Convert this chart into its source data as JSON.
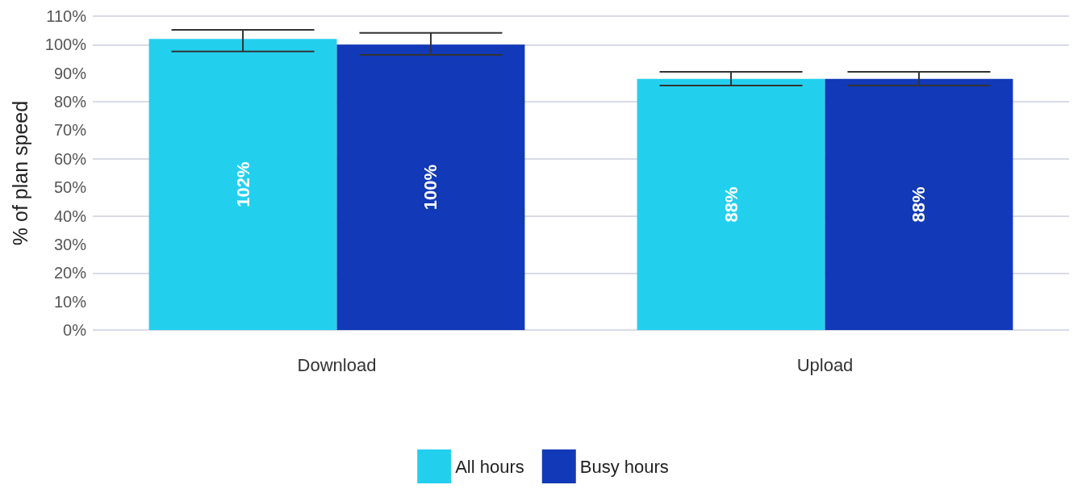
{
  "chart_data": {
    "type": "bar",
    "ylabel": "% of plan speed",
    "categories": [
      "Download",
      "Upload"
    ],
    "series": [
      {
        "name": "All hours",
        "color": "#22d0ee",
        "values": [
          102,
          88
        ],
        "value_labels": [
          "102%",
          "88%"
        ],
        "errors": [
          [
            97.6,
            105.2
          ],
          [
            85.7,
            90.5
          ]
        ]
      },
      {
        "name": "Busy hours",
        "color": "#1239b7",
        "values": [
          100,
          88
        ],
        "value_labels": [
          "100%",
          "88%"
        ],
        "errors": [
          [
            96.4,
            104.1
          ],
          [
            85.7,
            90.5
          ]
        ]
      }
    ],
    "ylim": [
      0,
      110
    ],
    "yticks": [
      {
        "value": 0,
        "label": "0%"
      },
      {
        "value": 10,
        "label": "10%"
      },
      {
        "value": 20,
        "label": "20%"
      },
      {
        "value": 30,
        "label": "30%"
      },
      {
        "value": 40,
        "label": "40%"
      },
      {
        "value": 50,
        "label": "50%"
      },
      {
        "value": 60,
        "label": "60%"
      },
      {
        "value": 70,
        "label": "70%"
      },
      {
        "value": 80,
        "label": "80%"
      },
      {
        "value": 90,
        "label": "90%"
      },
      {
        "value": 100,
        "label": "100%"
      },
      {
        "value": 110,
        "label": "110%"
      }
    ],
    "grid": true,
    "legend": "bottom"
  }
}
